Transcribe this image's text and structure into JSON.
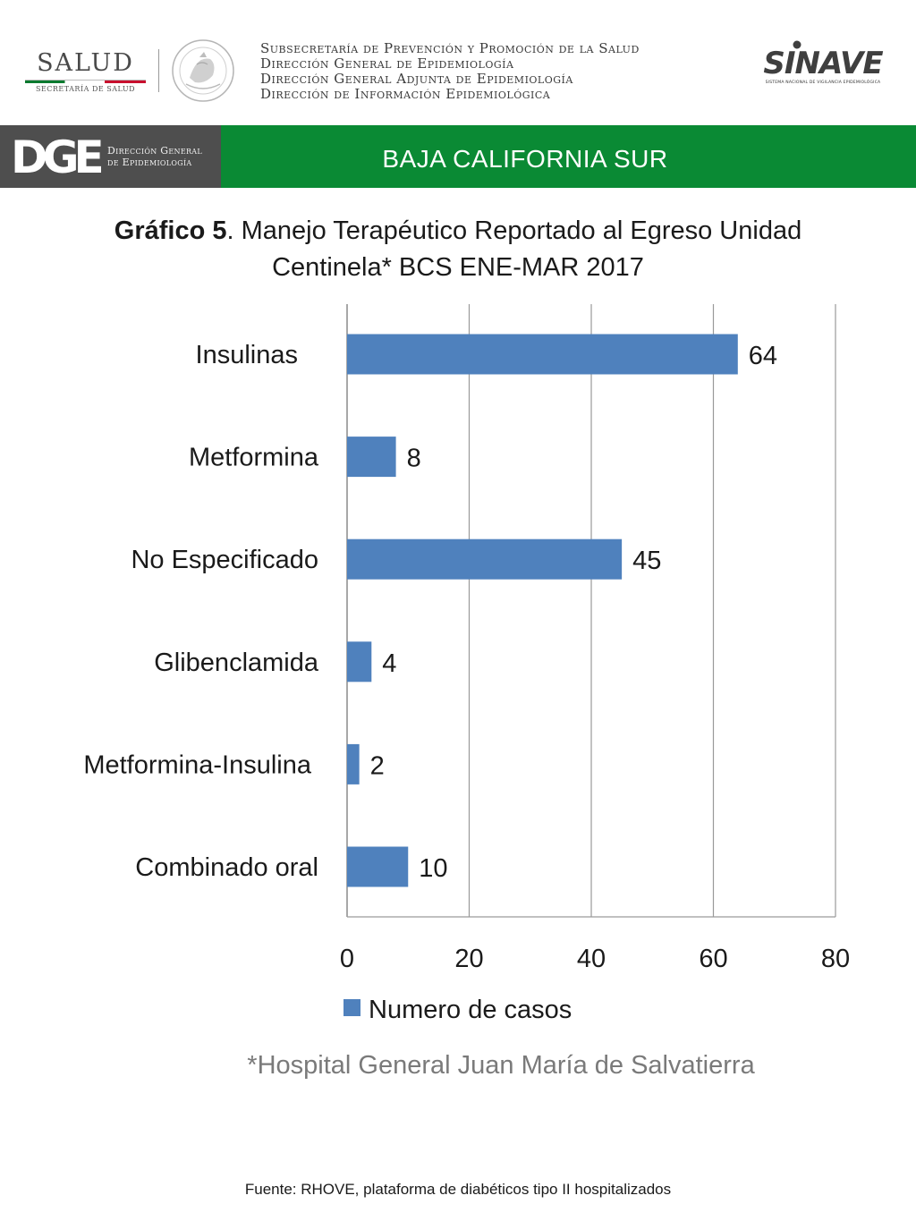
{
  "header": {
    "salud_logo": {
      "word": "SALUD",
      "sub": "SECRETARÍA DE SALUD"
    },
    "seal_icon": "mexican-coat-of-arms-icon",
    "subsecretaria_lines": [
      "Subsecretaría de Prevención y Promoción de la Salud",
      "Dirección General de Epidemiología",
      "Dirección General Adjunta de Epidemiología",
      "Dirección de Información Epidemiológica"
    ],
    "sinave_logo": {
      "word": "SINAVE",
      "sub": "SISTEMA NACIONAL DE VIGILANCIA EPIDEMIOLÓGICA"
    }
  },
  "banner": {
    "dge_mark": "DGE",
    "dge_text_line1": "Dirección General",
    "dge_text_line2": "de Epidemiología",
    "region": "BAJA CALIFORNIA SUR",
    "colors": {
      "left": "#4e4e4e",
      "right": "#0a8a34"
    }
  },
  "title": {
    "bold": "Gráfico 5",
    "rest_line1": ". Manejo Terapéutico Reportado al Egreso Unidad",
    "line2": "Centinela* BCS ENE-MAR 2017"
  },
  "chart_data": {
    "type": "bar",
    "orientation": "horizontal",
    "categories": [
      "Insulinas",
      "Metformina",
      "No Especificado",
      "Glibenclamida",
      "Metformina-Insulina",
      "Combinado oral"
    ],
    "series": [
      {
        "name": "Numero de casos",
        "values": [
          64,
          8,
          45,
          4,
          2,
          10
        ],
        "color": "#4f81bd"
      }
    ],
    "xlim": [
      0,
      80
    ],
    "xticks": [
      0,
      20,
      40,
      60,
      80
    ],
    "grid": true,
    "legend_position": "bottom",
    "data_labels": true
  },
  "footnote": "*Hospital General Juan María de Salvatierra",
  "source": "Fuente: RHOVE, plataforma de diabéticos tipo II hospitalizados"
}
